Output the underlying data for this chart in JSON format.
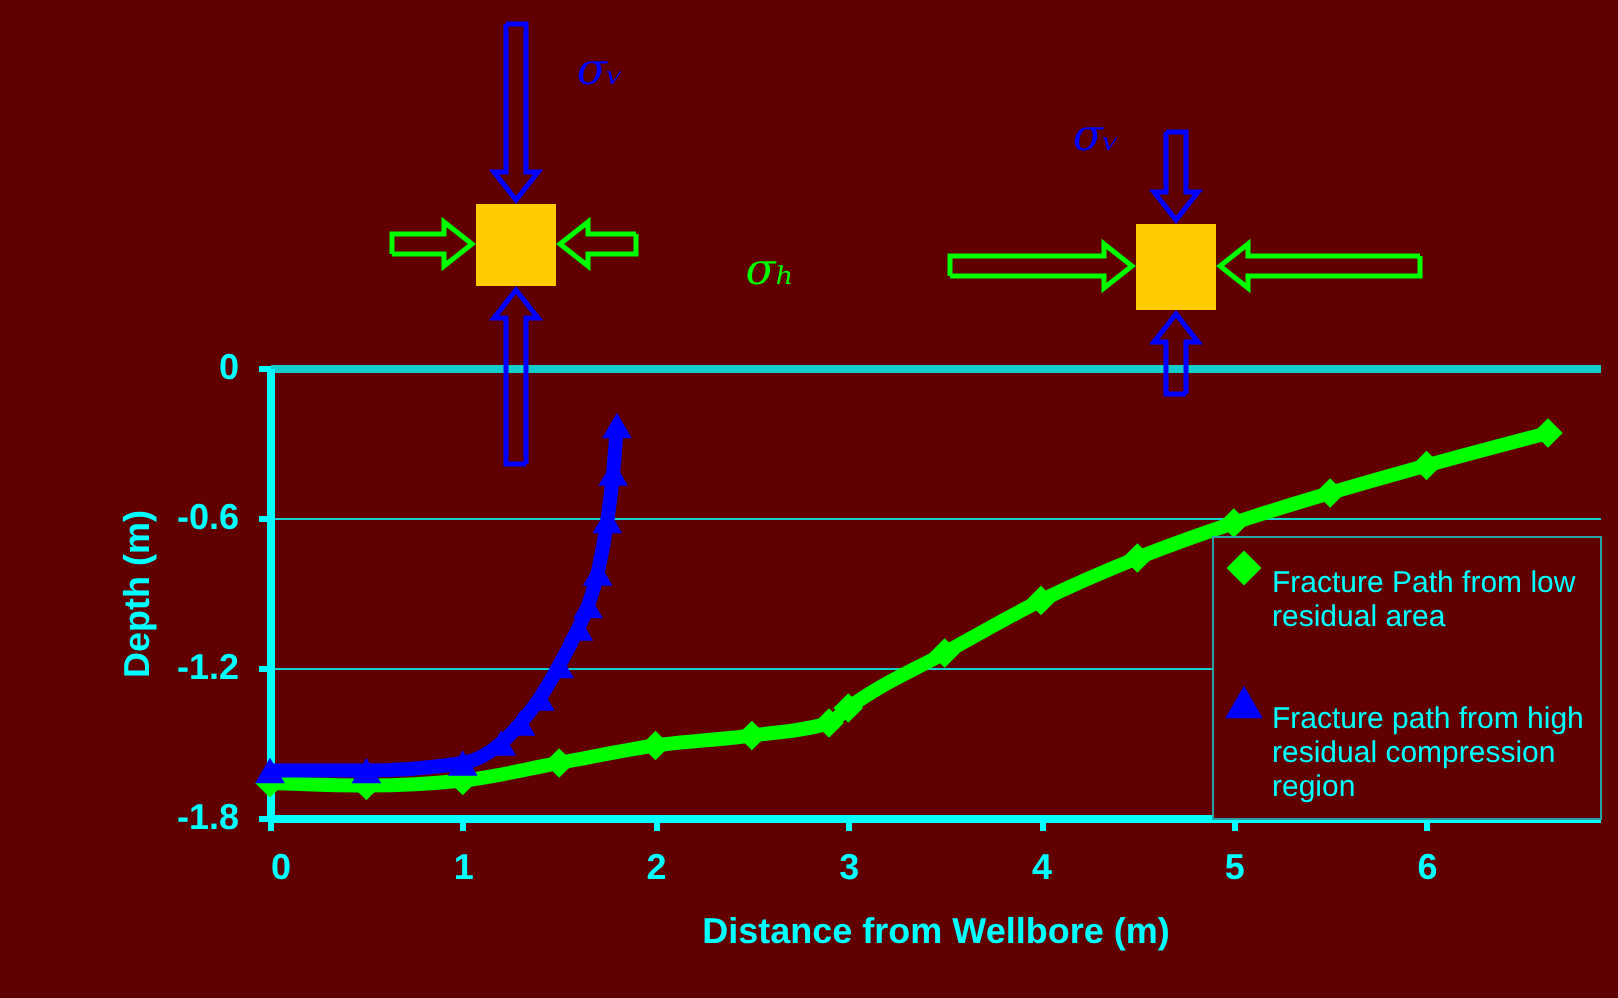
{
  "chart_data": {
    "type": "line",
    "xlabel": "Distance from Wellbore (m)",
    "ylabel": "Depth (m)",
    "xlim": [
      0,
      6.9
    ],
    "xticks": [
      0,
      1,
      2,
      3,
      4,
      5,
      6
    ],
    "ylim": [
      -1.8,
      0
    ],
    "yticks": [
      0,
      -0.6,
      -1.2,
      -1.8
    ],
    "grid": "y",
    "legend": "bottom right",
    "annotations": [
      "σᵥ",
      "σₕ",
      "σᵥ"
    ],
    "series": [
      {
        "name": "Fracture Path from low residual area",
        "color": "#00ff00",
        "marker": "diamond",
        "x": [
          0,
          0.5,
          1,
          1.5,
          2,
          2.5,
          2.9,
          3,
          3.5,
          4,
          4.5,
          5,
          5.5,
          6,
          6.63
        ],
        "values": [
          -1.66,
          -1.67,
          -1.65,
          -1.58,
          -1.51,
          -1.47,
          -1.42,
          -1.36,
          -1.14,
          -0.93,
          -0.76,
          -0.62,
          -0.5,
          -0.39,
          -0.26
        ]
      },
      {
        "name": "Fracture path from high residual compression region",
        "color": "#0000ff",
        "marker": "triangle",
        "x": [
          0,
          0.5,
          1,
          1.2,
          1.3,
          1.4,
          1.5,
          1.6,
          1.65,
          1.7,
          1.75,
          1.78,
          1.8
        ],
        "values": [
          -1.61,
          -1.61,
          -1.58,
          -1.5,
          -1.42,
          -1.32,
          -1.19,
          -1.04,
          -0.95,
          -0.82,
          -0.61,
          -0.42,
          -0.23
        ]
      }
    ]
  }
}
